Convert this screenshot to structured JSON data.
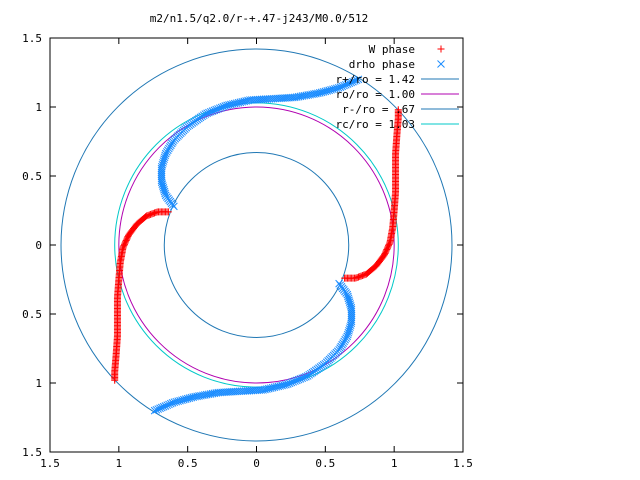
{
  "chart_data": {
    "type": "scatter",
    "title": "m2/n1.5/q2.0/r-+.47-j243/M0.0/512",
    "xlabel": "",
    "ylabel": "",
    "xlim": [
      -1.5,
      1.5
    ],
    "ylim": [
      -1.5,
      1.5
    ],
    "x_ticks": [
      -1.5,
      -1,
      -0.5,
      0,
      0.5,
      1,
      1.5
    ],
    "y_ticks": [
      -1.5,
      -1,
      -0.5,
      0,
      0.5,
      1,
      1.5
    ],
    "x_tick_labels": [
      "1.5",
      "1",
      "0.5",
      "0",
      "0.5",
      "1",
      "1.5"
    ],
    "y_tick_labels": [
      "1.5",
      "1",
      "0.5",
      "0",
      "0.5",
      "1",
      "1.5"
    ],
    "grid": false,
    "legend_position": "top-right",
    "series": [
      {
        "name": "W phase",
        "kind": "points",
        "marker": "+",
        "color": "#ff0000",
        "arms": [
          [
            [
              -0.64,
              0.24
            ],
            [
              -0.72,
              0.24
            ],
            [
              -0.8,
              0.21
            ],
            [
              -0.87,
              0.15
            ],
            [
              -0.93,
              0.07
            ],
            [
              -0.97,
              -0.02
            ],
            [
              -0.99,
              -0.13
            ],
            [
              -1.0,
              -0.25
            ],
            [
              -1.01,
              -0.38
            ],
            [
              -1.01,
              -0.52
            ],
            [
              -1.01,
              -0.66
            ],
            [
              -1.02,
              -0.8
            ],
            [
              -1.03,
              -0.92
            ],
            [
              -1.03,
              -0.98
            ]
          ],
          [
            [
              0.64,
              -0.24
            ],
            [
              0.72,
              -0.24
            ],
            [
              0.8,
              -0.21
            ],
            [
              0.87,
              -0.15
            ],
            [
              0.93,
              -0.07
            ],
            [
              0.97,
              0.02
            ],
            [
              0.99,
              0.13
            ],
            [
              1.0,
              0.25
            ],
            [
              1.01,
              0.38
            ],
            [
              1.01,
              0.52
            ],
            [
              1.01,
              0.66
            ],
            [
              1.02,
              0.8
            ],
            [
              1.03,
              0.92
            ],
            [
              1.03,
              0.98
            ]
          ]
        ]
      },
      {
        "name": "drho phase",
        "kind": "points",
        "marker": "x",
        "color": "#1a8cff",
        "arms": [
          [
            [
              -0.6,
              0.28
            ],
            [
              -0.66,
              0.36
            ],
            [
              -0.69,
              0.46
            ],
            [
              -0.69,
              0.56
            ],
            [
              -0.66,
              0.66
            ],
            [
              -0.6,
              0.76
            ],
            [
              -0.5,
              0.86
            ],
            [
              -0.37,
              0.95
            ],
            [
              -0.22,
              1.01
            ],
            [
              -0.05,
              1.05
            ],
            [
              0.12,
              1.06
            ],
            [
              0.28,
              1.07
            ],
            [
              0.45,
              1.1
            ],
            [
              0.6,
              1.14
            ],
            [
              0.74,
              1.2
            ]
          ],
          [
            [
              0.6,
              -0.28
            ],
            [
              0.66,
              -0.36
            ],
            [
              0.69,
              -0.46
            ],
            [
              0.69,
              -0.56
            ],
            [
              0.66,
              -0.66
            ],
            [
              0.6,
              -0.76
            ],
            [
              0.5,
              -0.86
            ],
            [
              0.37,
              -0.95
            ],
            [
              0.22,
              -1.01
            ],
            [
              0.05,
              -1.05
            ],
            [
              -0.12,
              -1.06
            ],
            [
              -0.28,
              -1.07
            ],
            [
              -0.45,
              -1.1
            ],
            [
              -0.6,
              -1.14
            ],
            [
              -0.74,
              -1.2
            ]
          ]
        ]
      },
      {
        "name": "r+/ro = 1.42",
        "kind": "circle",
        "radius": 1.42,
        "color": "#1f77b4"
      },
      {
        "name": "ro/ro = 1.00",
        "kind": "circle",
        "radius": 1.0,
        "color": "#b000b0"
      },
      {
        "name": "r-/ro = .67",
        "kind": "circle",
        "radius": 0.67,
        "color": "#1f77b4"
      },
      {
        "name": "rc/ro = 1.03",
        "kind": "circle",
        "radius": 1.03,
        "color": "#00c8c8"
      }
    ]
  }
}
